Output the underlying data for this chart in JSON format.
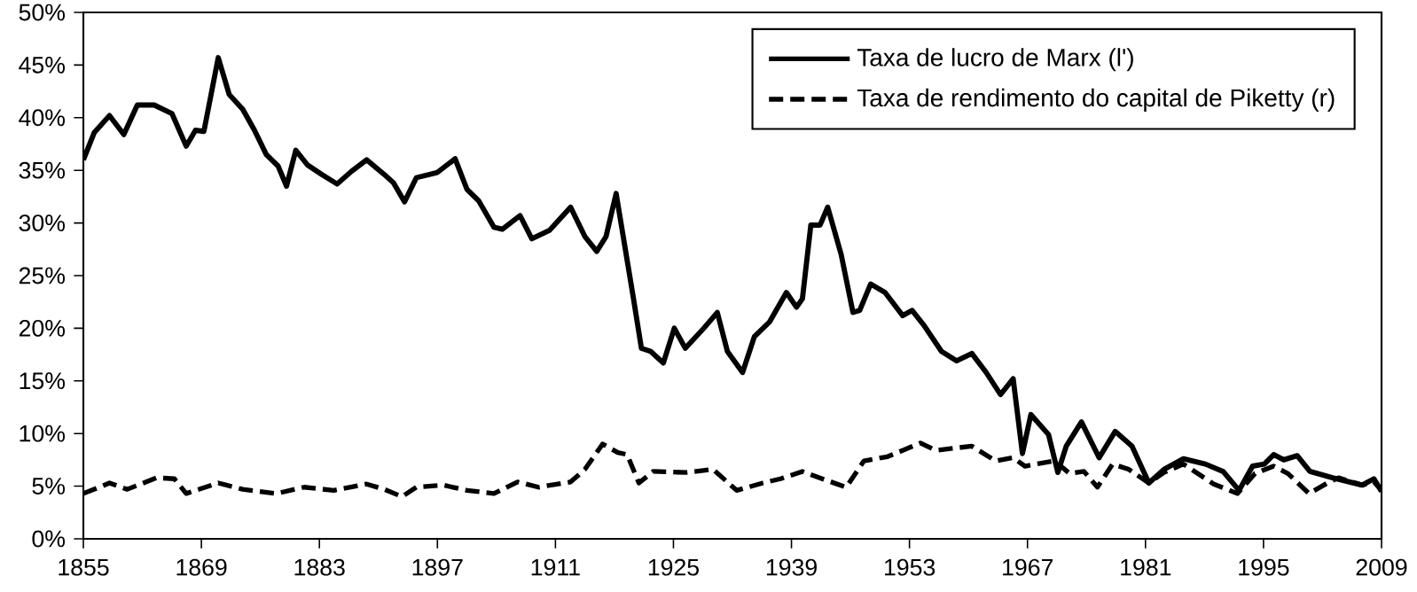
{
  "chart_data": {
    "type": "line",
    "xlim": [
      1855,
      2009
    ],
    "ylim": [
      0,
      50
    ],
    "xticks": [
      1855,
      1869,
      1883,
      1897,
      1911,
      1925,
      1939,
      1953,
      1967,
      1981,
      1995,
      2009
    ],
    "yticks": [
      {
        "value": 0,
        "label": "0%"
      },
      {
        "value": 5,
        "label": "5%"
      },
      {
        "value": 10,
        "label": "10%"
      },
      {
        "value": 15,
        "label": "15%"
      },
      {
        "value": 20,
        "label": "20%"
      },
      {
        "value": 25,
        "label": "25%"
      },
      {
        "value": 30,
        "label": "30%"
      },
      {
        "value": 35,
        "label": "35%"
      },
      {
        "value": 40,
        "label": "40%"
      },
      {
        "value": 45,
        "label": "45%"
      },
      {
        "value": 50,
        "label": "50%"
      }
    ],
    "legend": "top right",
    "grid": false,
    "marker": "none",
    "series": [
      {
        "name": "Taxa de lucro de Marx (l')",
        "color": "#000000",
        "line_style": "solid",
        "x": [
          1855,
          1856.3,
          1858.1,
          1859.8,
          1861.4,
          1863.4,
          1865.5,
          1867.2,
          1868.3,
          1869.3,
          1871,
          1872.3,
          1873.9,
          1875.3,
          1876.7,
          1878.1,
          1879.1,
          1880.2,
          1881.6,
          1883.3,
          1885.1,
          1886.8,
          1888.6,
          1890.7,
          1891.8,
          1893.1,
          1894.5,
          1897,
          1899.1,
          1900.5,
          1901.9,
          1903.7,
          1904.7,
          1906.8,
          1908.2,
          1910.3,
          1912.8,
          1914.5,
          1915.9,
          1917,
          1918.2,
          1919.5,
          1920.2,
          1921.2,
          1922.3,
          1923.8,
          1925.1,
          1926.4,
          1928.6,
          1930.2,
          1931.4,
          1933.2,
          1934.6,
          1936.4,
          1938.4,
          1939.6,
          1940.3,
          1941.3,
          1942.4,
          1943.3,
          1944.9,
          1946.3,
          1947.1,
          1948.4,
          1950.1,
          1952.2,
          1953.3,
          1954.7,
          1956.8,
          1958.6,
          1960.4,
          1962.1,
          1963.8,
          1965.3,
          1966.4,
          1967.4,
          1969.5,
          1970.6,
          1971.6,
          1973.4,
          1975.5,
          1977.4,
          1979.4,
          1981.4,
          1983.2,
          1985.5,
          1988.1,
          1990.2,
          1992.1,
          1993.7,
          1995.1,
          1996.2,
          1997.4,
          1999,
          2000.5,
          2003.2,
          2006.7,
          2008.1,
          2009
        ],
        "values": [
          36.0,
          38.6,
          40.2,
          38.4,
          41.2,
          41.2,
          40.4,
          37.3,
          38.8,
          38.7,
          45.7,
          42.2,
          40.8,
          38.8,
          36.5,
          35.4,
          33.5,
          36.9,
          35.5,
          34.6,
          33.7,
          34.9,
          36.0,
          34.6,
          33.8,
          32.0,
          34.3,
          34.8,
          36.1,
          33.2,
          32.1,
          29.6,
          29.4,
          30.7,
          28.5,
          29.3,
          31.5,
          28.7,
          27.3,
          28.7,
          32.8,
          26.5,
          23.1,
          18.1,
          17.8,
          16.7,
          20.0,
          18.1,
          20.0,
          21.5,
          17.8,
          15.8,
          19.2,
          20.6,
          23.4,
          22.0,
          22.8,
          29.8,
          29.8,
          31.5,
          27.0,
          21.5,
          21.7,
          24.2,
          23.4,
          21.2,
          21.7,
          20.3,
          17.8,
          16.9,
          17.6,
          15.8,
          13.7,
          15.2,
          8.1,
          11.8,
          9.9,
          6.3,
          8.8,
          11.1,
          7.7,
          10.2,
          8.8,
          5.3,
          6.6,
          7.6,
          7.1,
          6.4,
          4.6,
          6.9,
          7.1,
          8.0,
          7.5,
          7.9,
          6.4,
          5.8,
          5.1,
          5.7,
          4.5
        ]
      },
      {
        "name": "Taxa de rendimento do capital de Piketty (r)",
        "color": "#000000",
        "line_style": "dashed",
        "x": [
          1855,
          1858.1,
          1860.2,
          1863.7,
          1865.8,
          1867.2,
          1871,
          1873.9,
          1877.9,
          1881.2,
          1884.7,
          1888.6,
          1890.7,
          1892.8,
          1894.5,
          1897.7,
          1900.5,
          1903.7,
          1906.5,
          1909,
          1912.8,
          1914.5,
          1916.6,
          1918.4,
          1919.5,
          1920.9,
          1922.6,
          1926.5,
          1929.7,
          1932.5,
          1935.6,
          1937.7,
          1940.3,
          1943,
          1945.5,
          1947.6,
          1950.4,
          1954.3,
          1956.1,
          1960.4,
          1963.2,
          1965.3,
          1966.7,
          1970.2,
          1972,
          1973.7,
          1975.3,
          1977.1,
          1979,
          1981.4,
          1983.2,
          1985.5,
          1989.1,
          1991.9,
          1994,
          1996.2,
          1997.9,
          2000.4,
          2002.8,
          2003.9,
          2006.7,
          2008.1,
          2009
        ],
        "values": [
          4.3,
          5.3,
          4.7,
          5.8,
          5.7,
          4.3,
          5.3,
          4.7,
          4.3,
          4.9,
          4.6,
          5.2,
          4.7,
          4.0,
          4.9,
          5.1,
          4.6,
          4.3,
          5.4,
          4.9,
          5.4,
          6.6,
          9.0,
          8.2,
          8.0,
          5.3,
          6.4,
          6.3,
          6.6,
          4.6,
          5.3,
          5.7,
          6.4,
          5.6,
          4.9,
          7.4,
          7.8,
          9.1,
          8.4,
          8.8,
          7.4,
          7.7,
          6.9,
          7.4,
          6.2,
          6.4,
          4.9,
          7.1,
          6.6,
          5.3,
          6.3,
          7.1,
          5.2,
          4.3,
          6.2,
          6.9,
          6.2,
          4.3,
          5.4,
          5.8,
          5.1,
          5.4,
          4.6
        ]
      }
    ]
  }
}
